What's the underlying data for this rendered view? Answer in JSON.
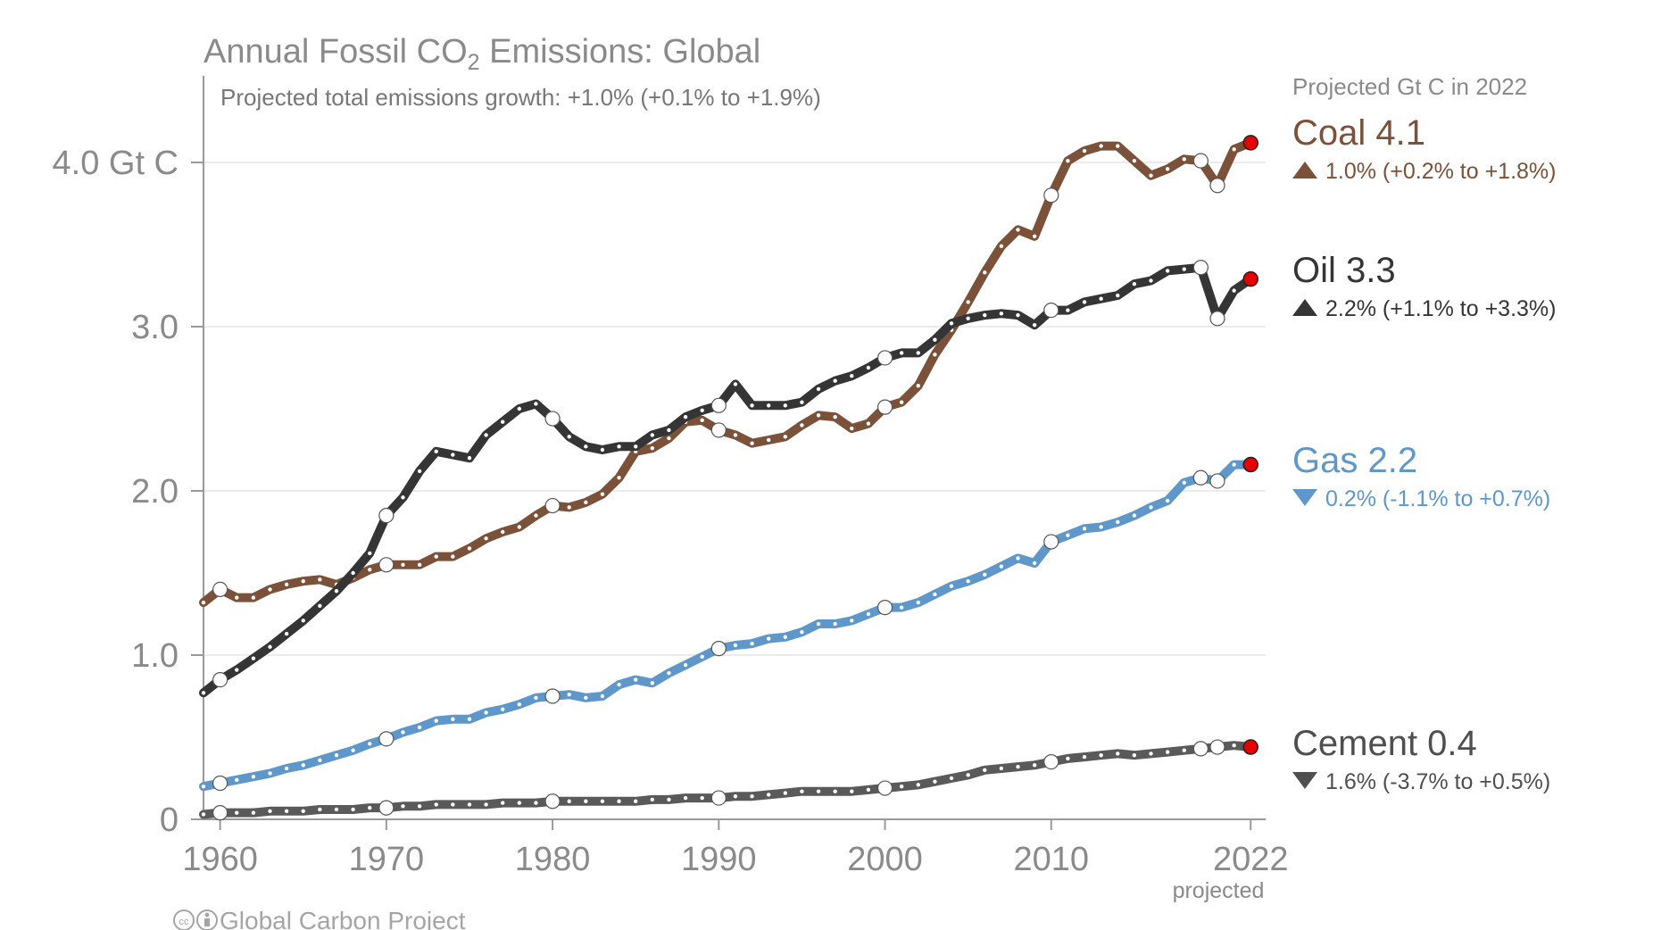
{
  "chart_data": {
    "type": "line",
    "title_main": "Annual Fossil CO",
    "title_sub": "2",
    "title_tail": " Emissions: Global",
    "subtitle": "Projected total emissions growth: +1.0% (+0.1% to +1.9%)",
    "legend_heading": "Projected Gt C in 2022",
    "y_ticks": [
      "0",
      "1.0",
      "2.0",
      "3.0",
      "4.0 Gt C"
    ],
    "y_tick_values": [
      0,
      1,
      2,
      3,
      4
    ],
    "x_ticks": [
      "1960",
      "1970",
      "1980",
      "1990",
      "2000",
      "2010",
      "2022"
    ],
    "x_tick_values": [
      1960,
      1970,
      1980,
      1990,
      2000,
      2010,
      2022
    ],
    "x_projected_label": "projected",
    "xlim": [
      1959,
      2022.9
    ],
    "ylim": [
      0,
      4.5
    ],
    "grid": true,
    "credit": "Global Carbon Project",
    "credit_icons": [
      "creative-commons-icon",
      "attribution-icon"
    ],
    "projection_year": 2022,
    "years": [
      1959,
      1960,
      1961,
      1962,
      1963,
      1964,
      1965,
      1966,
      1967,
      1968,
      1969,
      1970,
      1971,
      1972,
      1973,
      1974,
      1975,
      1976,
      1977,
      1978,
      1979,
      1980,
      1981,
      1982,
      1983,
      1984,
      1985,
      1986,
      1987,
      1988,
      1989,
      1990,
      1991,
      1992,
      1993,
      1994,
      1995,
      1996,
      1997,
      1998,
      1999,
      2000,
      2001,
      2002,
      2003,
      2004,
      2005,
      2006,
      2007,
      2008,
      2009,
      2010,
      2011,
      2012,
      2013,
      2014,
      2015,
      2016,
      2017,
      2018,
      2019,
      2020,
      2021,
      2022
    ],
    "series": [
      {
        "name": "Coal",
        "value_label": "4.1",
        "change_direction": "up",
        "change_text": "1.0% (+0.2% to +1.8%)",
        "color": "#7b5239",
        "label_color": "#7b5239",
        "values": [
          1.32,
          1.4,
          1.35,
          1.35,
          1.4,
          1.43,
          1.45,
          1.46,
          1.43,
          1.47,
          1.52,
          1.55,
          1.55,
          1.55,
          1.6,
          1.6,
          1.65,
          1.71,
          1.75,
          1.78,
          1.85,
          1.91,
          1.9,
          1.93,
          1.98,
          2.08,
          2.24,
          2.26,
          2.32,
          2.42,
          2.43,
          2.37,
          2.34,
          2.29,
          2.31,
          2.33,
          2.4,
          2.46,
          2.45,
          2.38,
          2.41,
          2.51,
          2.54,
          2.64,
          2.83,
          2.98,
          3.15,
          3.33,
          3.49,
          3.59,
          3.55,
          3.8,
          4.01,
          4.07,
          4.1,
          4.1,
          4.01,
          3.92,
          3.96,
          4.02,
          4.01,
          3.86,
          4.08,
          4.12
        ]
      },
      {
        "name": "Oil",
        "value_label": "3.3",
        "change_direction": "up",
        "change_text": "2.2% (+1.1% to +3.3%)",
        "color": "#353535",
        "label_color": "#353535",
        "values": [
          0.77,
          0.85,
          0.91,
          0.98,
          1.05,
          1.13,
          1.21,
          1.3,
          1.39,
          1.5,
          1.62,
          1.85,
          1.96,
          2.12,
          2.24,
          2.22,
          2.2,
          2.34,
          2.42,
          2.5,
          2.53,
          2.44,
          2.33,
          2.27,
          2.25,
          2.27,
          2.27,
          2.34,
          2.37,
          2.45,
          2.49,
          2.52,
          2.65,
          2.52,
          2.52,
          2.52,
          2.54,
          2.62,
          2.67,
          2.7,
          2.75,
          2.81,
          2.84,
          2.84,
          2.92,
          3.02,
          3.05,
          3.07,
          3.08,
          3.07,
          3.01,
          3.1,
          3.1,
          3.15,
          3.17,
          3.19,
          3.26,
          3.28,
          3.34,
          3.35,
          3.36,
          3.05,
          3.22,
          3.29
        ]
      },
      {
        "name": "Gas",
        "value_label": "2.2",
        "change_direction": "down",
        "change_text": "0.2% (-1.1% to +0.7%)",
        "color": "#5e97c9",
        "label_color": "#5e97c9",
        "values": [
          0.2,
          0.22,
          0.24,
          0.26,
          0.28,
          0.31,
          0.33,
          0.36,
          0.39,
          0.42,
          0.46,
          0.49,
          0.53,
          0.56,
          0.6,
          0.61,
          0.61,
          0.65,
          0.67,
          0.7,
          0.74,
          0.75,
          0.76,
          0.74,
          0.75,
          0.82,
          0.85,
          0.83,
          0.89,
          0.94,
          0.99,
          1.04,
          1.06,
          1.07,
          1.1,
          1.11,
          1.14,
          1.19,
          1.19,
          1.21,
          1.25,
          1.29,
          1.29,
          1.32,
          1.37,
          1.42,
          1.45,
          1.49,
          1.54,
          1.59,
          1.56,
          1.69,
          1.73,
          1.77,
          1.78,
          1.81,
          1.85,
          1.9,
          1.94,
          2.05,
          2.08,
          2.06,
          2.16,
          2.16
        ]
      },
      {
        "name": "Cement",
        "value_label": "0.4",
        "change_direction": "down",
        "change_text": "1.6% (-3.7% to +0.5%)",
        "color": "#5a5a5a",
        "label_color": "#4f4f4f",
        "values": [
          0.03,
          0.04,
          0.04,
          0.04,
          0.05,
          0.05,
          0.05,
          0.06,
          0.06,
          0.06,
          0.07,
          0.07,
          0.08,
          0.08,
          0.09,
          0.09,
          0.09,
          0.09,
          0.1,
          0.1,
          0.1,
          0.11,
          0.11,
          0.11,
          0.11,
          0.11,
          0.11,
          0.12,
          0.12,
          0.13,
          0.13,
          0.13,
          0.14,
          0.14,
          0.15,
          0.16,
          0.17,
          0.17,
          0.17,
          0.17,
          0.18,
          0.19,
          0.2,
          0.21,
          0.23,
          0.25,
          0.27,
          0.3,
          0.31,
          0.32,
          0.33,
          0.35,
          0.37,
          0.38,
          0.39,
          0.4,
          0.39,
          0.4,
          0.41,
          0.42,
          0.43,
          0.44,
          0.45,
          0.44
        ]
      }
    ]
  }
}
